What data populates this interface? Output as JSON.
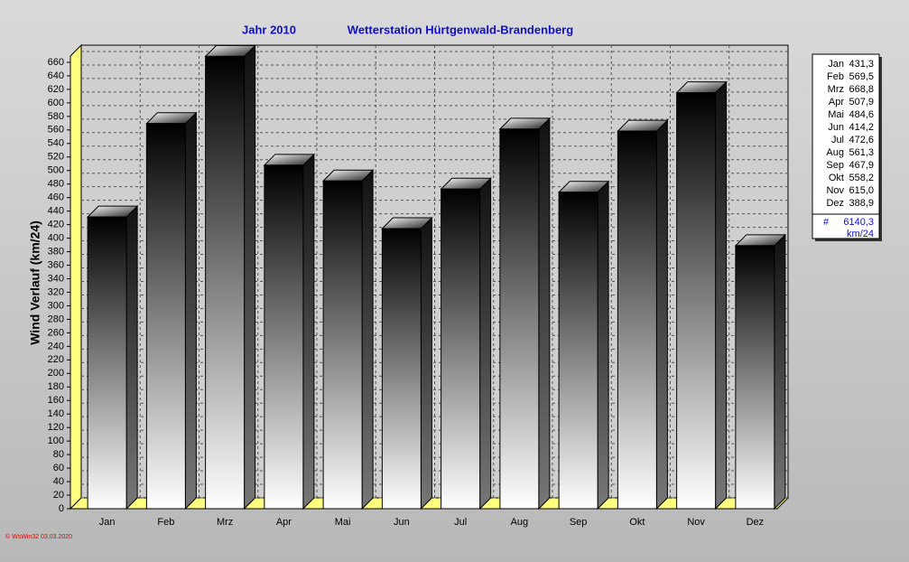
{
  "chart_data": {
    "type": "bar3d",
    "title": "Jahr  2010",
    "subtitle": "Wetterstation Hürtgenwald-Brandenberg",
    "y_label": "Wind Verlauf  (km/24)",
    "categories": [
      "Jan",
      "Feb",
      "Mrz",
      "Apr",
      "Mai",
      "Jun",
      "Jul",
      "Aug",
      "Sep",
      "Okt",
      "Nov",
      "Dez"
    ],
    "values": [
      431.3,
      569.5,
      668.8,
      507.9,
      484.6,
      414.2,
      472.6,
      561.3,
      467.9,
      558.2,
      615.0,
      388.9
    ],
    "value_labels": [
      "431,3",
      "569,5",
      "668,8",
      "507,9",
      "484,6",
      "414,2",
      "472,6",
      "561,3",
      "467,9",
      "558,2",
      "615,0",
      "388,9"
    ],
    "ylim": [
      0,
      680
    ],
    "yticks": [
      0,
      20,
      40,
      60,
      80,
      100,
      120,
      140,
      160,
      180,
      200,
      220,
      240,
      260,
      280,
      300,
      320,
      340,
      360,
      380,
      400,
      420,
      440,
      460,
      480,
      500,
      520,
      540,
      560,
      580,
      600,
      620,
      640,
      660
    ],
    "grid": true,
    "legend_total_symbol": "#",
    "legend_total": "6140,3",
    "legend_unit": "km/24",
    "footer": "© WsWin32  03.03.2020"
  }
}
